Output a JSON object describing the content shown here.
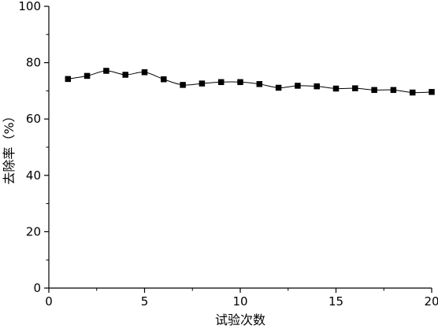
{
  "chart_data": {
    "type": "line",
    "title": "",
    "xlabel": "试验次数",
    "ylabel": "去除率（%）",
    "xlim": [
      0,
      20
    ],
    "ylim": [
      0,
      100
    ],
    "xticks": [
      0,
      5,
      10,
      15,
      20
    ],
    "yticks": [
      0,
      20,
      40,
      60,
      80,
      100
    ],
    "grid": false,
    "series": [
      {
        "marker": "square",
        "color": "#000000",
        "x": [
          1,
          2,
          3,
          4,
          5,
          6,
          7,
          8,
          9,
          10,
          11,
          12,
          13,
          14,
          15,
          16,
          17,
          18,
          19,
          20
        ],
        "y": [
          74.2,
          75.3,
          77.1,
          75.7,
          76.6,
          74.1,
          72.1,
          72.6,
          73.1,
          73.1,
          72.4,
          71.1,
          71.8,
          71.6,
          70.8,
          70.9,
          70.3,
          70.3,
          69.4,
          69.6
        ]
      }
    ]
  }
}
